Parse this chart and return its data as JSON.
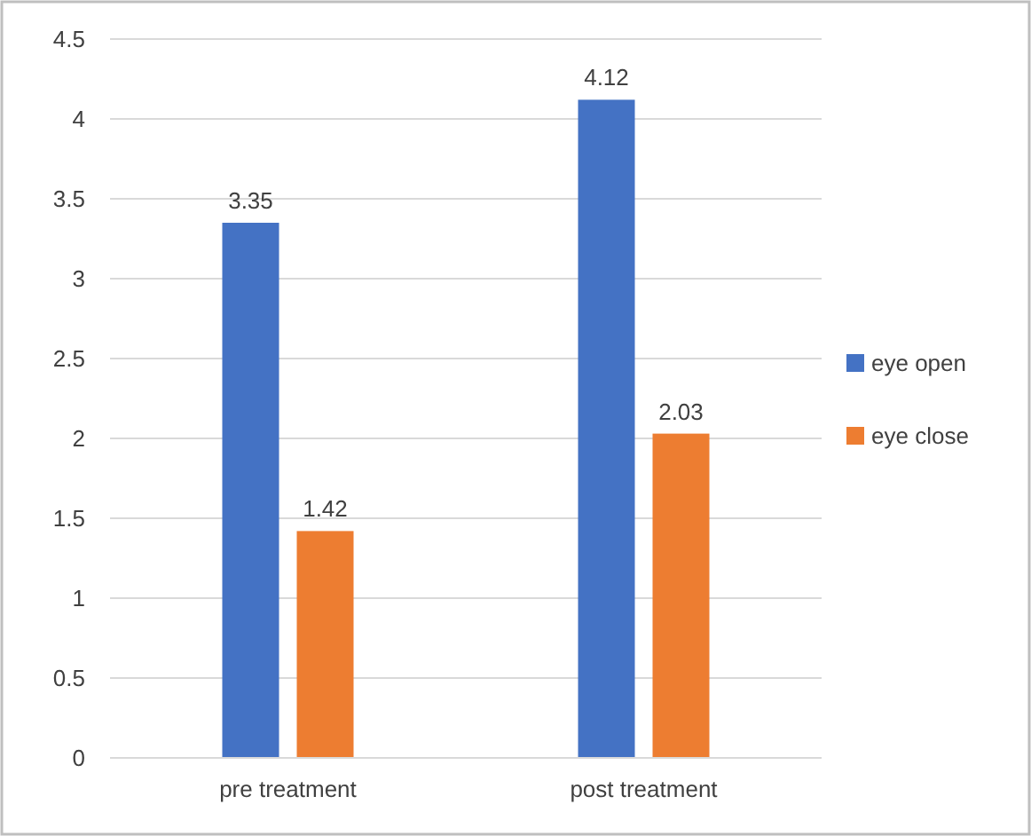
{
  "chart_data": {
    "type": "bar",
    "categories": [
      "pre treatment",
      "post treatment"
    ],
    "series": [
      {
        "name": "eye open",
        "color": "#4472c4",
        "values": [
          3.35,
          4.12
        ]
      },
      {
        "name": "eye close",
        "color": "#ed7d31",
        "values": [
          1.42,
          2.03
        ]
      }
    ],
    "ylim": [
      0,
      4.5
    ],
    "yticks": [
      0,
      0.5,
      1,
      1.5,
      2,
      2.5,
      3,
      3.5,
      4,
      4.5
    ],
    "grid": "y",
    "legend": "right",
    "data_labels": true
  }
}
